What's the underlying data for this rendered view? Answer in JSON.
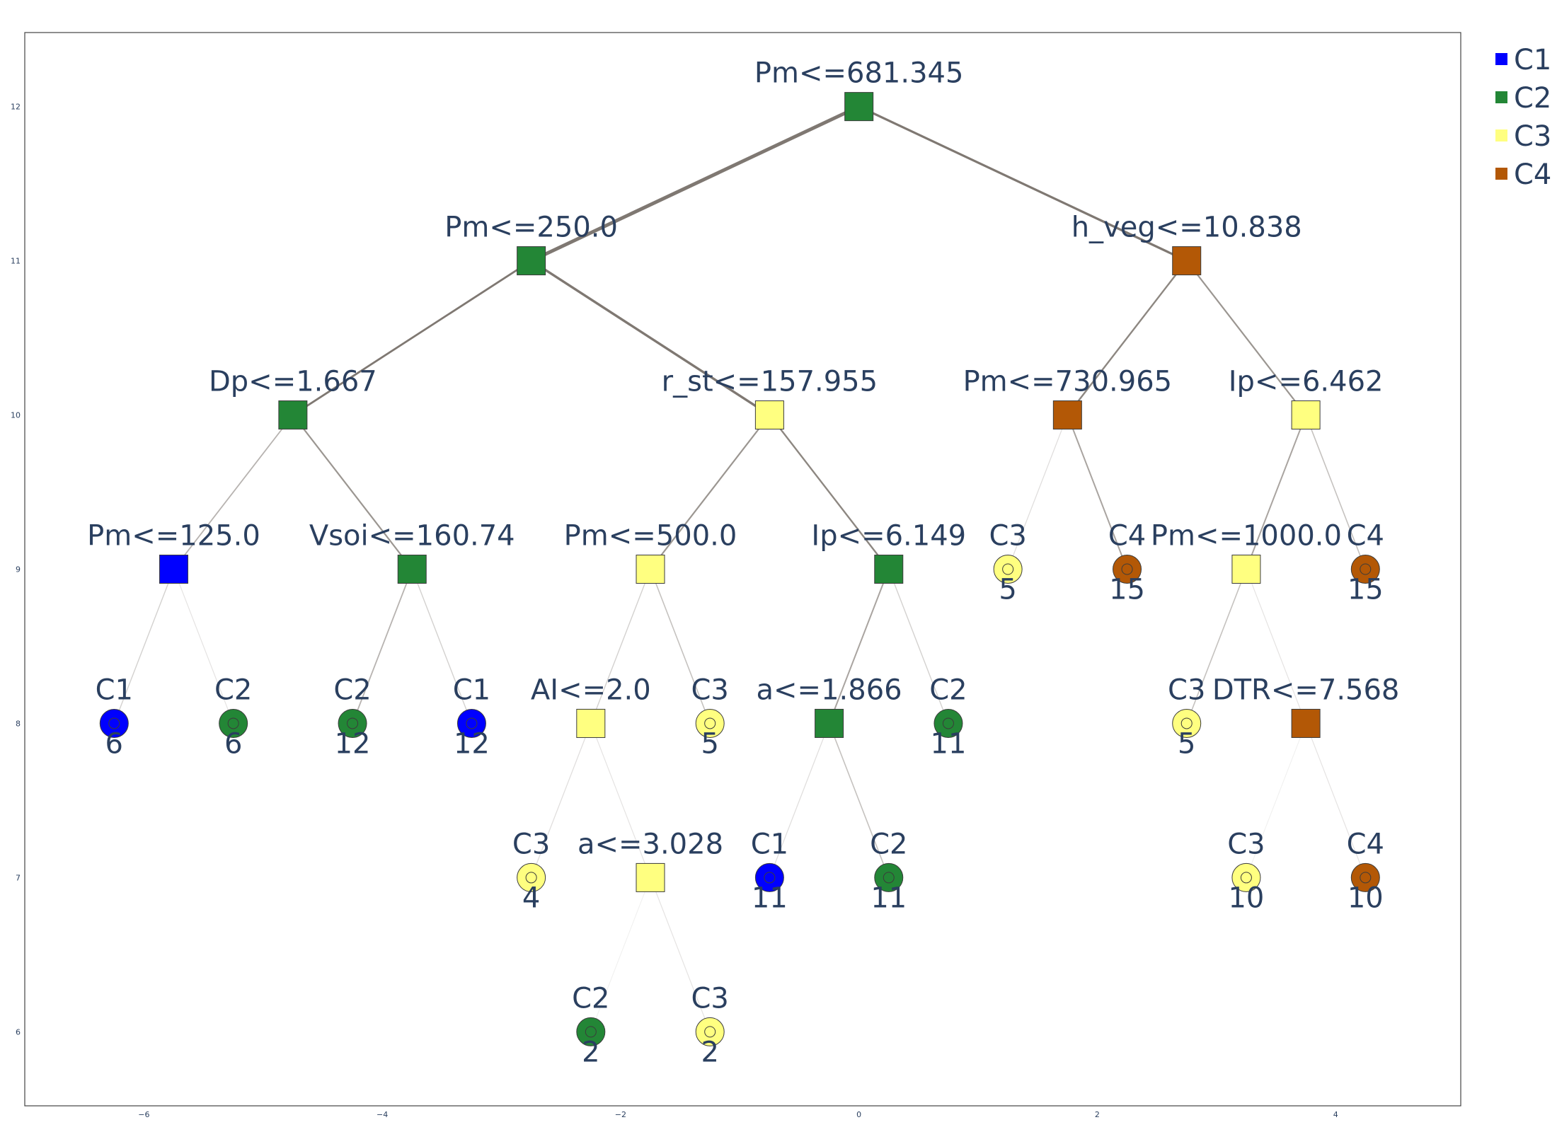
{
  "axis": {
    "x_ticks": [
      {
        "value": -6,
        "label": "−6"
      },
      {
        "value": -4,
        "label": "−4"
      },
      {
        "value": -2,
        "label": "−2"
      },
      {
        "value": 0,
        "label": "0"
      },
      {
        "value": 2,
        "label": "2"
      },
      {
        "value": 4,
        "label": "4"
      }
    ],
    "y_ticks": [
      {
        "value": 12,
        "label": "12"
      },
      {
        "value": 11,
        "label": "11"
      },
      {
        "value": 10,
        "label": "10"
      },
      {
        "value": 9,
        "label": "9"
      },
      {
        "value": 8,
        "label": "8"
      },
      {
        "value": 7,
        "label": "7"
      },
      {
        "value": 6,
        "label": "6"
      }
    ],
    "xlim": [
      -7.0,
      5.05
    ],
    "ylim": [
      5.52,
      12.48
    ]
  },
  "legend": {
    "placement": "top-right",
    "items": [
      {
        "label": "C1",
        "color": "#0000ff"
      },
      {
        "label": "C2",
        "color": "#238636"
      },
      {
        "label": "C3",
        "color": "#ffff80"
      },
      {
        "label": "C4",
        "color": "#b35806"
      }
    ]
  },
  "colors": {
    "C1": "#0000ff",
    "C2": "#238636",
    "C3": "#ffff80",
    "C4": "#b35806",
    "edge": "#7f7872"
  },
  "tree": {
    "nodes": [
      {
        "id": "n0",
        "x": 0,
        "y": 12,
        "label": "Pm<=681.345",
        "cls": "C2",
        "leaf": false
      },
      {
        "id": "n1",
        "x": -2.75,
        "y": 11,
        "label": "Pm<=250.0",
        "cls": "C2",
        "leaf": false
      },
      {
        "id": "n2",
        "x": 2.75,
        "y": 11,
        "label": "h_veg<=10.838",
        "cls": "C4",
        "leaf": false
      },
      {
        "id": "n3",
        "x": -4.75,
        "y": 10,
        "label": "Dp<=1.667",
        "cls": "C2",
        "leaf": false
      },
      {
        "id": "n4",
        "x": -0.75,
        "y": 10,
        "label": "r_st<=157.955",
        "cls": "C3",
        "leaf": false
      },
      {
        "id": "n5",
        "x": 1.75,
        "y": 10,
        "label": "Pm<=730.965",
        "cls": "C4",
        "leaf": false
      },
      {
        "id": "n6",
        "x": 3.75,
        "y": 10,
        "label": "Ip<=6.462",
        "cls": "C3",
        "leaf": false
      },
      {
        "id": "n7",
        "x": -5.75,
        "y": 9,
        "label": "Pm<=125.0",
        "cls": "C1",
        "leaf": false
      },
      {
        "id": "n8",
        "x": -3.75,
        "y": 9,
        "label": "Vsoi<=160.74",
        "cls": "C2",
        "leaf": false
      },
      {
        "id": "n9",
        "x": -1.75,
        "y": 9,
        "label": "Pm<=500.0",
        "cls": "C3",
        "leaf": false
      },
      {
        "id": "n10",
        "x": 0.25,
        "y": 9,
        "label": "Ip<=6.149",
        "cls": "C2",
        "leaf": false
      },
      {
        "id": "n11",
        "x": 1.25,
        "y": 9,
        "label": "C3",
        "cls": "C3",
        "leaf": true,
        "count": "5"
      },
      {
        "id": "n12",
        "x": 2.25,
        "y": 9,
        "label": "C4",
        "cls": "C4",
        "leaf": true,
        "count": "15"
      },
      {
        "id": "n13",
        "x": 3.25,
        "y": 9,
        "label": "Pm<=1000.0",
        "cls": "C3",
        "leaf": false
      },
      {
        "id": "n14",
        "x": 4.25,
        "y": 9,
        "label": "C4",
        "cls": "C4",
        "leaf": true,
        "count": "15"
      },
      {
        "id": "n15",
        "x": -6.25,
        "y": 8,
        "label": "C1",
        "cls": "C1",
        "leaf": true,
        "count": "6"
      },
      {
        "id": "n16",
        "x": -5.25,
        "y": 8,
        "label": "C2",
        "cls": "C2",
        "leaf": true,
        "count": "6"
      },
      {
        "id": "n17",
        "x": -4.25,
        "y": 8,
        "label": "C2",
        "cls": "C2",
        "leaf": true,
        "count": "12"
      },
      {
        "id": "n18",
        "x": -3.25,
        "y": 8,
        "label": "C1",
        "cls": "C1",
        "leaf": true,
        "count": "12"
      },
      {
        "id": "n19",
        "x": -2.25,
        "y": 8,
        "label": "AI<=2.0",
        "cls": "C3",
        "leaf": false
      },
      {
        "id": "n20",
        "x": -1.25,
        "y": 8,
        "label": "C3",
        "cls": "C3",
        "leaf": true,
        "count": "5"
      },
      {
        "id": "n21",
        "x": -0.25,
        "y": 8,
        "label": "a<=1.866",
        "cls": "C2",
        "leaf": false
      },
      {
        "id": "n22",
        "x": 0.75,
        "y": 8,
        "label": "C2",
        "cls": "C2",
        "leaf": true,
        "count": "11"
      },
      {
        "id": "n23",
        "x": 2.75,
        "y": 8,
        "label": "C3",
        "cls": "C3",
        "leaf": true,
        "count": "5"
      },
      {
        "id": "n24",
        "x": 3.75,
        "y": 8,
        "label": "DTR<=7.568",
        "cls": "C4",
        "leaf": false
      },
      {
        "id": "n25",
        "x": -2.75,
        "y": 7,
        "label": "C3",
        "cls": "C3",
        "leaf": true,
        "count": "4"
      },
      {
        "id": "n26",
        "x": -1.75,
        "y": 7,
        "label": "a<=3.028",
        "cls": "C3",
        "leaf": false
      },
      {
        "id": "n27",
        "x": -0.75,
        "y": 7,
        "label": "C1",
        "cls": "C1",
        "leaf": true,
        "count": "11"
      },
      {
        "id": "n28",
        "x": 0.25,
        "y": 7,
        "label": "C2",
        "cls": "C2",
        "leaf": true,
        "count": "11"
      },
      {
        "id": "n29",
        "x": 3.25,
        "y": 7,
        "label": "C3",
        "cls": "C3",
        "leaf": true,
        "count": "10"
      },
      {
        "id": "n30",
        "x": 4.25,
        "y": 7,
        "label": "C4",
        "cls": "C4",
        "leaf": true,
        "count": "10"
      },
      {
        "id": "n31",
        "x": -2.25,
        "y": 6,
        "label": "C2",
        "cls": "C2",
        "leaf": true,
        "count": "2"
      },
      {
        "id": "n32",
        "x": -1.25,
        "y": 6,
        "label": "C3",
        "cls": "C3",
        "leaf": true,
        "count": "2"
      }
    ],
    "edges": [
      {
        "from": "n0",
        "to": "n1",
        "weight": 1.0
      },
      {
        "from": "n0",
        "to": "n2",
        "weight": 0.55
      },
      {
        "from": "n1",
        "to": "n3",
        "weight": 0.45
      },
      {
        "from": "n1",
        "to": "n4",
        "weight": 0.6
      },
      {
        "from": "n2",
        "to": "n5",
        "weight": 0.35
      },
      {
        "from": "n2",
        "to": "n6",
        "weight": 0.3
      },
      {
        "from": "n3",
        "to": "n7",
        "weight": 0.2
      },
      {
        "from": "n3",
        "to": "n8",
        "weight": 0.3
      },
      {
        "from": "n4",
        "to": "n9",
        "weight": 0.3
      },
      {
        "from": "n4",
        "to": "n10",
        "weight": 0.35
      },
      {
        "from": "n5",
        "to": "n11",
        "weight": 0.06
      },
      {
        "from": "n5",
        "to": "n12",
        "weight": 0.25
      },
      {
        "from": "n6",
        "to": "n13",
        "weight": 0.25
      },
      {
        "from": "n6",
        "to": "n14",
        "weight": 0.15
      },
      {
        "from": "n7",
        "to": "n15",
        "weight": 0.1
      },
      {
        "from": "n7",
        "to": "n16",
        "weight": 0.04
      },
      {
        "from": "n8",
        "to": "n17",
        "weight": 0.2
      },
      {
        "from": "n8",
        "to": "n18",
        "weight": 0.1
      },
      {
        "from": "n9",
        "to": "n19",
        "weight": 0.1
      },
      {
        "from": "n9",
        "to": "n20",
        "weight": 0.15
      },
      {
        "from": "n10",
        "to": "n21",
        "weight": 0.25
      },
      {
        "from": "n10",
        "to": "n22",
        "weight": 0.1
      },
      {
        "from": "n13",
        "to": "n23",
        "weight": 0.15
      },
      {
        "from": "n13",
        "to": "n24",
        "weight": 0.04
      },
      {
        "from": "n19",
        "to": "n25",
        "weight": 0.06
      },
      {
        "from": "n19",
        "to": "n26",
        "weight": 0.04
      },
      {
        "from": "n21",
        "to": "n27",
        "weight": 0.06
      },
      {
        "from": "n21",
        "to": "n28",
        "weight": 0.15
      },
      {
        "from": "n24",
        "to": "n29",
        "weight": 0.0
      },
      {
        "from": "n24",
        "to": "n30",
        "weight": 0.04
      },
      {
        "from": "n26",
        "to": "n31",
        "weight": 0.0
      },
      {
        "from": "n26",
        "to": "n32",
        "weight": 0.04
      }
    ]
  }
}
